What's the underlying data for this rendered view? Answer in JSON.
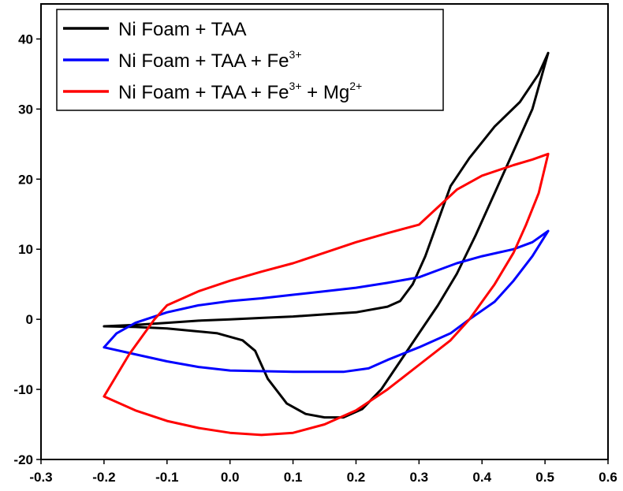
{
  "chart_data": {
    "type": "line",
    "title": "",
    "xlabel": "",
    "ylabel": "",
    "xlim": [
      -0.3,
      0.6
    ],
    "ylim": [
      -20,
      45
    ],
    "x_ticks": [
      -0.3,
      -0.2,
      -0.1,
      0.0,
      0.1,
      0.2,
      0.3,
      0.4,
      0.5,
      0.6
    ],
    "x_tick_labels": [
      "-0.3",
      "-0.2",
      "-0.1",
      "0.0",
      "0.1",
      "0.2",
      "0.3",
      "0.4",
      "0.5",
      "0.6"
    ],
    "y_ticks": [
      -20,
      -10,
      0,
      10,
      20,
      30,
      40
    ],
    "y_tick_labels": [
      "-20",
      "-10",
      "0",
      "10",
      "20",
      "30",
      "40"
    ],
    "grid": false,
    "legend_position": "top-left",
    "series": [
      {
        "name": "Ni Foam + TAA",
        "legend": {
          "text": "Ni Foam + TAA",
          "sup1": "",
          "mid": "",
          "sup2": ""
        },
        "color": "#000000",
        "points": [
          [
            -0.2,
            -1.0
          ],
          [
            -0.15,
            -0.8
          ],
          [
            -0.1,
            -0.5
          ],
          [
            -0.05,
            -0.2
          ],
          [
            0.0,
            0.0
          ],
          [
            0.05,
            0.2
          ],
          [
            0.1,
            0.4
          ],
          [
            0.15,
            0.7
          ],
          [
            0.2,
            1.0
          ],
          [
            0.25,
            1.8
          ],
          [
            0.27,
            2.6
          ],
          [
            0.29,
            5.0
          ],
          [
            0.31,
            9.0
          ],
          [
            0.33,
            14.0
          ],
          [
            0.35,
            19.0
          ],
          [
            0.38,
            23.0
          ],
          [
            0.42,
            27.5
          ],
          [
            0.46,
            31.0
          ],
          [
            0.49,
            35.0
          ],
          [
            0.505,
            38.0
          ],
          [
            0.48,
            30.0
          ],
          [
            0.45,
            24.0
          ],
          [
            0.42,
            18.0
          ],
          [
            0.39,
            12.0
          ],
          [
            0.36,
            6.5
          ],
          [
            0.33,
            2.0
          ],
          [
            0.3,
            -2.0
          ],
          [
            0.27,
            -6.0
          ],
          [
            0.24,
            -10.0
          ],
          [
            0.21,
            -12.8
          ],
          [
            0.18,
            -14.0
          ],
          [
            0.15,
            -14.0
          ],
          [
            0.12,
            -13.5
          ],
          [
            0.09,
            -12.0
          ],
          [
            0.06,
            -8.5
          ],
          [
            0.04,
            -4.5
          ],
          [
            0.02,
            -3.0
          ],
          [
            -0.02,
            -2.0
          ],
          [
            -0.1,
            -1.3
          ],
          [
            -0.15,
            -1.1
          ],
          [
            -0.2,
            -1.0
          ]
        ]
      },
      {
        "name": "Ni Foam + TAA  + Fe3+",
        "legend": {
          "text": "Ni Foam + TAA  + Fe",
          "sup1": "3+",
          "mid": "",
          "sup2": ""
        },
        "color": "#0000ff",
        "points": [
          [
            -0.2,
            -4.0
          ],
          [
            -0.18,
            -2.0
          ],
          [
            -0.15,
            -0.5
          ],
          [
            -0.1,
            1.0
          ],
          [
            -0.05,
            2.0
          ],
          [
            0.0,
            2.6
          ],
          [
            0.05,
            3.0
          ],
          [
            0.1,
            3.5
          ],
          [
            0.15,
            4.0
          ],
          [
            0.2,
            4.5
          ],
          [
            0.25,
            5.2
          ],
          [
            0.3,
            6.0
          ],
          [
            0.33,
            7.0
          ],
          [
            0.36,
            8.0
          ],
          [
            0.4,
            9.0
          ],
          [
            0.45,
            10.0
          ],
          [
            0.48,
            11.0
          ],
          [
            0.505,
            12.6
          ],
          [
            0.48,
            9.0
          ],
          [
            0.45,
            5.5
          ],
          [
            0.42,
            2.5
          ],
          [
            0.38,
            0.0
          ],
          [
            0.35,
            -2.0
          ],
          [
            0.3,
            -4.0
          ],
          [
            0.25,
            -5.8
          ],
          [
            0.22,
            -7.0
          ],
          [
            0.18,
            -7.5
          ],
          [
            0.1,
            -7.5
          ],
          [
            0.0,
            -7.3
          ],
          [
            -0.05,
            -6.8
          ],
          [
            -0.1,
            -6.0
          ],
          [
            -0.15,
            -5.0
          ],
          [
            -0.2,
            -4.0
          ]
        ]
      },
      {
        "name": "Ni Foam + TAA  + Fe3+ + Mg2+",
        "legend": {
          "text": "Ni Foam + TAA  + Fe",
          "sup1": "3+",
          "mid": " + Mg",
          "sup2": "2+"
        },
        "color": "#ff0000",
        "points": [
          [
            -0.2,
            -11.0
          ],
          [
            -0.16,
            -5.0
          ],
          [
            -0.12,
            0.0
          ],
          [
            -0.1,
            2.0
          ],
          [
            -0.05,
            4.0
          ],
          [
            0.0,
            5.5
          ],
          [
            0.05,
            6.8
          ],
          [
            0.1,
            8.0
          ],
          [
            0.15,
            9.5
          ],
          [
            0.2,
            11.0
          ],
          [
            0.25,
            12.3
          ],
          [
            0.3,
            13.5
          ],
          [
            0.33,
            16.0
          ],
          [
            0.36,
            18.5
          ],
          [
            0.4,
            20.5
          ],
          [
            0.45,
            22.0
          ],
          [
            0.48,
            22.8
          ],
          [
            0.505,
            23.6
          ],
          [
            0.49,
            18.0
          ],
          [
            0.47,
            13.5
          ],
          [
            0.45,
            9.5
          ],
          [
            0.42,
            5.0
          ],
          [
            0.38,
            0.0
          ],
          [
            0.35,
            -3.0
          ],
          [
            0.3,
            -6.5
          ],
          [
            0.25,
            -10.0
          ],
          [
            0.2,
            -13.0
          ],
          [
            0.15,
            -15.0
          ],
          [
            0.1,
            -16.2
          ],
          [
            0.05,
            -16.5
          ],
          [
            0.0,
            -16.2
          ],
          [
            -0.05,
            -15.5
          ],
          [
            -0.1,
            -14.5
          ],
          [
            -0.15,
            -13.0
          ],
          [
            -0.2,
            -11.0
          ]
        ]
      }
    ]
  }
}
